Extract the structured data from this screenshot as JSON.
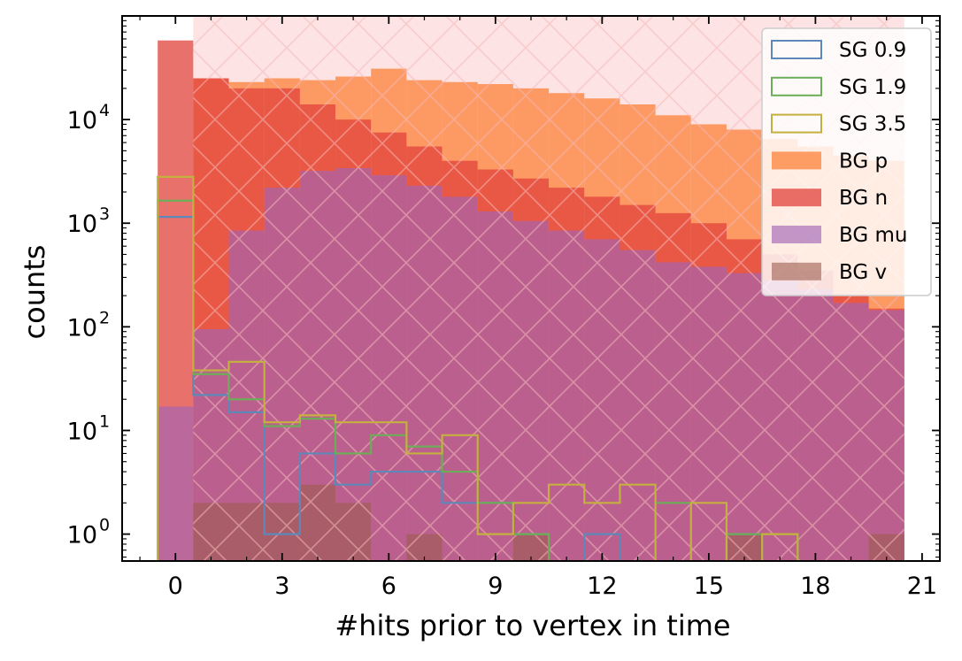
{
  "chart_data": {
    "type": "histogram",
    "xlabel": "#hits prior to vertex in time",
    "ylabel": "counts",
    "yscale": "log",
    "xlim": [
      -1.5,
      21.5
    ],
    "ylim": [
      0.55,
      100000
    ],
    "xticks": [
      0,
      3,
      6,
      9,
      12,
      15,
      18,
      21
    ],
    "xtick_labels": [
      "0",
      "3",
      "6",
      "9",
      "12",
      "15",
      "18",
      "21"
    ],
    "yticks": [
      1,
      10,
      100,
      1000,
      10000
    ],
    "legend_position": "top-right",
    "bins": [
      -0.5,
      0.5,
      1.5,
      2.5,
      3.5,
      4.5,
      5.5,
      6.5,
      7.5,
      8.5,
      9.5,
      10.5,
      11.5,
      12.5,
      13.5,
      14.5,
      15.5,
      16.5,
      17.5,
      18.5,
      19.5,
      20.5
    ],
    "band": {
      "x_start": 0.5,
      "x_end": 20.5,
      "color": "#fde3e3",
      "hatch": "cross"
    },
    "series": [
      {
        "name": "BG p",
        "style": "filled",
        "color": "#fd8d4c",
        "opacity": 0.85,
        "values": [
          0,
          25000,
          23000,
          25000,
          24000,
          26000,
          31000,
          24000,
          23000,
          22000,
          20000,
          18000,
          16000,
          14000,
          11000,
          9000,
          8000,
          6500,
          5500,
          4500,
          4000
        ]
      },
      {
        "name": "BG n",
        "style": "filled",
        "color": "#e2413a",
        "opacity": 0.75,
        "values": [
          58000,
          25000,
          20000,
          20000,
          14000,
          10000,
          7500,
          5500,
          4000,
          3300,
          2700,
          2200,
          1800,
          1500,
          1250,
          1000,
          700,
          500,
          350,
          200,
          150
        ]
      },
      {
        "name": "BG mu",
        "style": "filled",
        "color": "#a366b7",
        "opacity": 0.65,
        "values": [
          17,
          95,
          850,
          2200,
          3200,
          3400,
          2900,
          2300,
          1800,
          1300,
          1050,
          850,
          700,
          550,
          420,
          380,
          330,
          280,
          230,
          170,
          145
        ]
      },
      {
        "name": "BG v",
        "style": "filled",
        "color": "#9c5c4e",
        "opacity": 0.6,
        "values": [
          0,
          2,
          2,
          2,
          3,
          2,
          0,
          1,
          0,
          0,
          1,
          0,
          0,
          0,
          0,
          0,
          1,
          0,
          0,
          0,
          1
        ]
      },
      {
        "name": "SG 0.9",
        "style": "step",
        "color": "#5d88b8",
        "values": [
          1150,
          22,
          15,
          1,
          6,
          3,
          4,
          4,
          2,
          2,
          1,
          0,
          1,
          0,
          0,
          0,
          1,
          0,
          0,
          0,
          0
        ]
      },
      {
        "name": "SG 1.9",
        "style": "step",
        "color": "#6cae58",
        "values": [
          1650,
          35,
          20,
          11,
          13,
          6,
          9,
          7,
          4,
          2,
          1,
          0,
          0,
          0,
          2,
          0,
          1,
          1,
          0,
          0,
          0
        ]
      },
      {
        "name": "SG 3.5",
        "style": "step",
        "color": "#c4b03e",
        "values": [
          2800,
          38,
          46,
          12,
          14,
          12,
          12,
          6,
          9,
          1,
          2,
          3,
          2,
          3,
          0,
          2,
          0,
          1,
          0,
          0,
          0
        ]
      }
    ],
    "legend_order": [
      "SG 0.9",
      "SG 1.9",
      "SG 3.5",
      "BG p",
      "BG n",
      "BG mu",
      "BG v"
    ]
  }
}
